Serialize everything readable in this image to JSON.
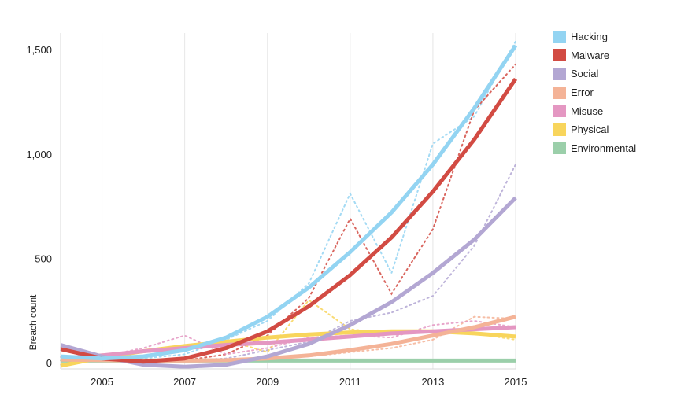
{
  "chart_data": {
    "type": "line",
    "title": "",
    "xlabel": "",
    "ylabel": "Breach count",
    "x": [
      2004,
      2005,
      2006,
      2007,
      2008,
      2009,
      2010,
      2011,
      2012,
      2013,
      2014,
      2015
    ],
    "x_ticks": [
      2005,
      2007,
      2009,
      2011,
      2013,
      2015
    ],
    "y_ticks": [
      0,
      500,
      1000,
      1500
    ],
    "y_tick_labels": [
      "0",
      "500",
      "1,000",
      "1,500"
    ],
    "xlim": [
      2004,
      2015
    ],
    "ylim": [
      -30,
      1580
    ],
    "grid": "vertical",
    "legend_position": "right",
    "series": [
      {
        "name": "Hacking",
        "color": "#93d4f2",
        "trend": [
          30,
          20,
          30,
          60,
          120,
          220,
          360,
          530,
          720,
          950,
          1220,
          1520
        ],
        "actual": [
          25,
          10,
          20,
          40,
          110,
          200,
          380,
          810,
          430,
          1050,
          1180,
          1540
        ]
      },
      {
        "name": "Malware",
        "color": "#d24b43",
        "trend": [
          65,
          20,
          5,
          20,
          70,
          150,
          270,
          420,
          600,
          820,
          1070,
          1360
        ],
        "actual": [
          70,
          10,
          5,
          10,
          40,
          130,
          310,
          690,
          330,
          640,
          1210,
          1430
        ]
      },
      {
        "name": "Social",
        "color": "#b3a7d3",
        "trend": [
          85,
          30,
          -10,
          -20,
          -10,
          30,
          90,
          180,
          290,
          430,
          590,
          790
        ],
        "actual": [
          60,
          20,
          5,
          10,
          20,
          60,
          100,
          200,
          240,
          320,
          560,
          950
        ]
      },
      {
        "name": "Error",
        "color": "#f4b397",
        "trend": [
          15,
          12,
          10,
          10,
          12,
          20,
          35,
          60,
          90,
          130,
          170,
          220
        ],
        "actual": [
          10,
          15,
          8,
          15,
          10,
          25,
          30,
          50,
          70,
          110,
          220,
          210
        ]
      },
      {
        "name": "Misuse",
        "color": "#e497c2",
        "trend": [
          20,
          35,
          55,
          70,
          85,
          95,
          110,
          125,
          140,
          150,
          160,
          170
        ],
        "actual": [
          30,
          30,
          70,
          130,
          40,
          70,
          120,
          130,
          120,
          180,
          200,
          170
        ]
      },
      {
        "name": "Physical",
        "color": "#f8d55c",
        "trend": [
          -15,
          25,
          55,
          80,
          100,
          120,
          135,
          145,
          150,
          150,
          140,
          125
        ],
        "actual": [
          -10,
          40,
          50,
          60,
          110,
          50,
          300,
          160,
          140,
          150,
          140,
          110
        ]
      },
      {
        "name": "Environmental",
        "color": "#9bcfaa",
        "trend": [
          10,
          10,
          10,
          10,
          10,
          10,
          10,
          10,
          10,
          10,
          10,
          10
        ],
        "actual": [
          10,
          10,
          10,
          10,
          10,
          10,
          10,
          10,
          10,
          10,
          10,
          10
        ]
      }
    ]
  }
}
